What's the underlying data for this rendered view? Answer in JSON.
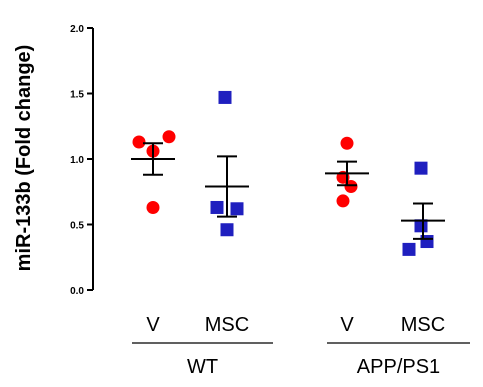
{
  "chart_data": {
    "type": "scatter",
    "ylabel": "miR-133b (Fold change)",
    "ylim": [
      0.0,
      2.0
    ],
    "yticks": [
      0.0,
      0.5,
      1.0,
      1.5,
      2.0
    ],
    "ytick_labels": [
      "0.0",
      "0.5",
      "1.0",
      "1.5",
      "2.0"
    ],
    "categories": [
      {
        "label": "V",
        "group": "WT",
        "marker": "circle",
        "color": "#ff0000",
        "points": [
          1.13,
          1.17,
          1.06,
          0.63
        ],
        "mean": 1.0,
        "sem_low": 0.88,
        "sem_high": 1.12
      },
      {
        "label": "MSC",
        "group": "WT",
        "marker": "square",
        "color": "#1f1fbf",
        "points": [
          1.47,
          0.63,
          0.62,
          0.46
        ],
        "mean": 0.79,
        "sem_low": 0.56,
        "sem_high": 1.02
      },
      {
        "label": "V",
        "group": "APP/PS1",
        "marker": "circle",
        "color": "#ff0000",
        "points": [
          1.12,
          0.86,
          0.79,
          0.68
        ],
        "mean": 0.89,
        "sem_low": 0.8,
        "sem_high": 0.98
      },
      {
        "label": "MSC",
        "group": "APP/PS1",
        "marker": "square",
        "color": "#1f1fbf",
        "points": [
          0.93,
          0.49,
          0.37,
          0.31
        ],
        "mean": 0.53,
        "sem_low": 0.39,
        "sem_high": 0.66
      }
    ],
    "groups": [
      "WT",
      "APP/PS1"
    ],
    "grid": false,
    "legend": "none"
  }
}
